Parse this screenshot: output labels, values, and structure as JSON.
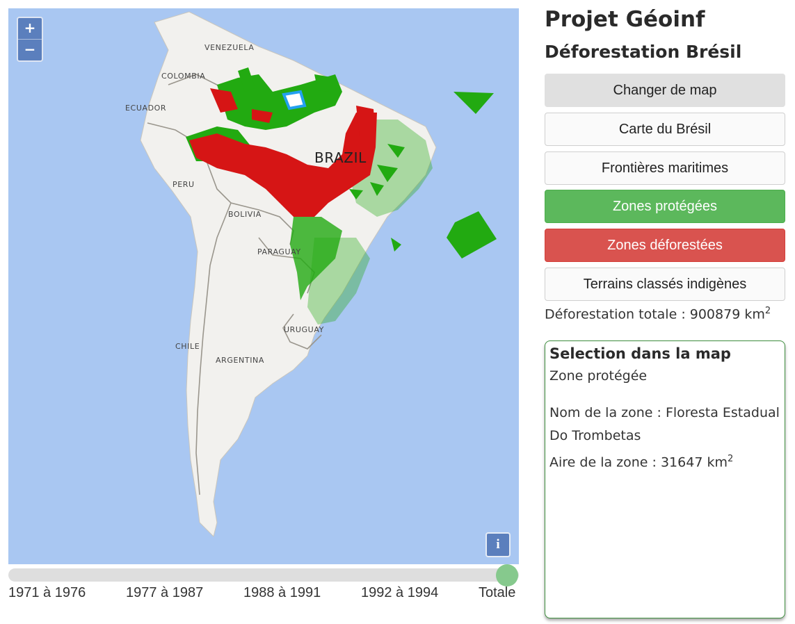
{
  "app": {
    "title": "Projet Géoinf",
    "subtitle": "Déforestation Brésil"
  },
  "map": {
    "zoom_in": "+",
    "zoom_out": "−",
    "info": "i",
    "labels": {
      "venezuela": "VENEZUELA",
      "colombia": "COLOMBIA",
      "ecuador": "ECUADOR",
      "peru": "PERU",
      "bolivia": "BOLIVIA",
      "paraguay": "PARAGUAY",
      "uruguay": "URUGUAY",
      "chile": "CHILE",
      "argentina": "ARGENTINA",
      "brazil": "BRAZIL"
    },
    "colors": {
      "ocean": "#a9c7f2",
      "land": "#f2f1ee",
      "protected": "#22aa11",
      "deforested": "#d61515",
      "selected": "#22a0f0"
    }
  },
  "timeline": {
    "ticks": [
      "1971 à 1976",
      "1977 à 1987",
      "1988 à 1991",
      "1992 à 1994",
      "Totale"
    ],
    "selected": "Totale"
  },
  "buttons": {
    "change_map": "Changer de map",
    "brazil_map": "Carte du Brésil",
    "maritime": "Frontières maritimes",
    "protected": "Zones protégées",
    "deforested": "Zones déforestées",
    "indigenous": "Terrains classés indigènes"
  },
  "stats": {
    "total_label": "Déforestation totale : 900879 km",
    "total_exp": "2"
  },
  "selection": {
    "title": "Selection dans la map",
    "type": "Zone protégée",
    "name_label": "Nom de la zone : Floresta Estadual",
    "name_cont": "Do Trombetas",
    "area_label": "Aire de la zone : 31647 km",
    "area_exp": "2"
  }
}
